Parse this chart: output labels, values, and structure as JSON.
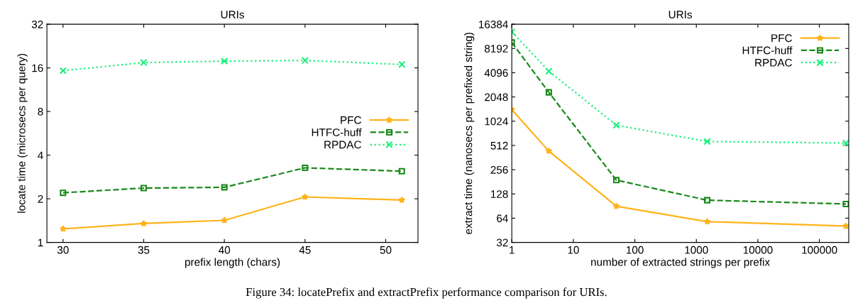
{
  "chart_data": [
    {
      "type": "line",
      "title": "URIs",
      "xlabel": "prefix length (chars)",
      "ylabel": "locate time (microsecs per query)",
      "log": "y",
      "legend": "right",
      "grid": false,
      "x": [
        30,
        35,
        40,
        45,
        51
      ],
      "xlim": [
        29,
        52
      ],
      "xticks": [
        30,
        35,
        40,
        45,
        50
      ],
      "ylim": [
        1,
        32
      ],
      "yticks": [
        1,
        2,
        4,
        8,
        16,
        32
      ],
      "annotations": [
        "Figure 34: locatePrefix and extractPrefix performance comparison for URIs."
      ],
      "series": [
        {
          "name": "PFC",
          "color": "#ffb31a",
          "marker": "star",
          "line_style": "solid",
          "values": [
            1.24,
            1.35,
            1.42,
            2.06,
            1.96
          ]
        },
        {
          "name": "HTFC-huff",
          "color": "#1a8a1a",
          "marker": "square",
          "line_style": "dashed",
          "values": [
            2.2,
            2.37,
            2.4,
            3.27,
            3.1
          ]
        },
        {
          "name": "RPDAC",
          "color": "#19f07a",
          "marker": "cross",
          "line_style": "dotted",
          "values": [
            15.3,
            17.4,
            17.8,
            18.0,
            16.9
          ]
        }
      ]
    },
    {
      "type": "line",
      "title": "URIs",
      "xlabel": "number of extracted strings per prefix",
      "ylabel": "extract time (nanosecs per prefixed string)",
      "log": "xy",
      "legend": "top right",
      "grid": false,
      "x": [
        1,
        4,
        50,
        1500,
        270000
      ],
      "xlim": [
        1,
        300000
      ],
      "xticks": [
        1,
        10,
        100,
        1000,
        10000,
        100000
      ],
      "ylim": [
        32,
        16384
      ],
      "yticks": [
        32,
        64,
        128,
        256,
        512,
        1024,
        2048,
        4096,
        8192,
        16384
      ],
      "series": [
        {
          "name": "PFC",
          "color": "#ffb31a",
          "marker": "star",
          "line_style": "solid",
          "values": [
            1424,
            436,
            90,
            58,
            51
          ]
        },
        {
          "name": "HTFC-huff",
          "color": "#1a8a1a",
          "marker": "square",
          "line_style": "dashed",
          "values": [
            9730,
            2337,
            190,
            107,
            96
          ]
        },
        {
          "name": "RPDAC",
          "color": "#19f07a",
          "marker": "cross",
          "line_style": "dotted",
          "values": [
            13200,
            4280,
            913,
            573,
            548
          ]
        }
      ]
    }
  ]
}
